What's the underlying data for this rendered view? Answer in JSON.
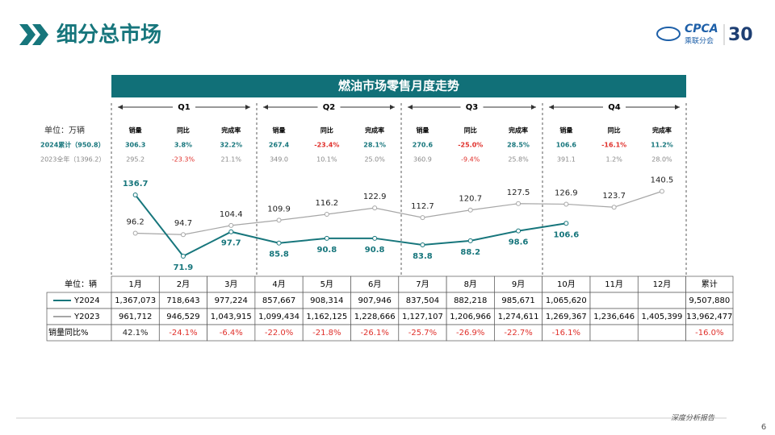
{
  "header": {
    "title": "细分总市场",
    "logo": "CPCA",
    "logo_sub": "乘联分会",
    "anniversary": "30"
  },
  "quarter_table": {
    "unit": "单位：万辆",
    "quarters": [
      "Q1",
      "Q2",
      "Q3",
      "Q4"
    ],
    "columns": [
      "销量",
      "同比",
      "完成率",
      "销量",
      "同比",
      "完成率",
      "销量",
      "同比",
      "完成率",
      "销量",
      "同比",
      "完成率"
    ],
    "rows": [
      {
        "label": "2024累计（950.8）",
        "cells": [
          "306.3",
          "3.8%",
          "32.2%",
          "267.4",
          "-23.4%",
          "28.1%",
          "270.6",
          "-25.0%",
          "28.5%",
          "106.6",
          "-16.1%",
          "11.2%"
        ]
      },
      {
        "label": "2023全年（1396.2）",
        "cells": [
          "295.2",
          "-23.3%",
          "21.1%",
          "349.0",
          "10.1%",
          "25.0%",
          "360.9",
          "-9.4%",
          "25.8%",
          "391.1",
          "1.2%",
          "28.0%"
        ]
      }
    ]
  },
  "chart_data": {
    "type": "line",
    "title": "燃油市场零售月度走势",
    "categories": [
      "1月",
      "2月",
      "3月",
      "4月",
      "5月",
      "6月",
      "7月",
      "8月",
      "9月",
      "10月",
      "11月",
      "12月"
    ],
    "series": [
      {
        "name": "Y2024",
        "color": "#17767c",
        "values": [
          136.7,
          71.9,
          97.7,
          85.8,
          90.8,
          90.8,
          83.8,
          88.2,
          98.6,
          106.6,
          null,
          null
        ]
      },
      {
        "name": "Y2023",
        "color": "#a6a6a6",
        "values": [
          96.2,
          94.7,
          104.4,
          109.9,
          116.2,
          122.9,
          112.7,
          120.7,
          127.5,
          126.9,
          123.7,
          140.5
        ]
      }
    ]
  },
  "data_table": {
    "unit": "单位：辆",
    "total_label": "累计",
    "rows": [
      [
        "1,367,073",
        "718,643",
        "977,224",
        "857,667",
        "908,314",
        "907,946",
        "837,504",
        "882,218",
        "985,671",
        "1,065,620",
        null,
        null,
        "9,507,880"
      ],
      [
        "961,712",
        "946,529",
        "1,043,915",
        "1,099,434",
        "1,162,125",
        "1,228,666",
        "1,127,107",
        "1,206,966",
        "1,274,611",
        "1,269,367",
        "1,236,646",
        "1,405,399",
        "13,962,477"
      ]
    ],
    "yoy_label": "销量同比%",
    "yoy": [
      "42.1%",
      "-24.1%",
      "-6.4%",
      "-22.0%",
      "-21.8%",
      "-26.1%",
      "-25.7%",
      "-26.9%",
      "-22.7%",
      "-16.1%",
      null,
      null,
      "-16.0%"
    ]
  },
  "footer": {
    "text": "深度分析报告",
    "page": "6"
  }
}
